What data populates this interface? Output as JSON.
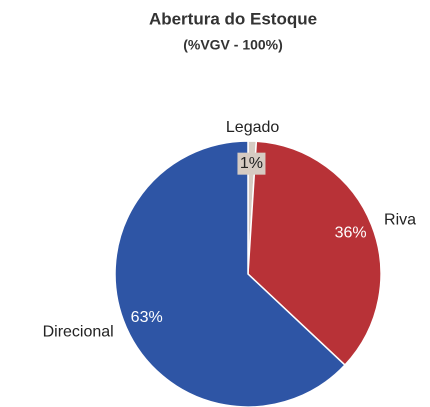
{
  "chart_data": {
    "type": "pie",
    "title": "Abertura do Estoque",
    "subtitle": "(%VGV - 100%)",
    "categories": [
      "Legado",
      "Riva",
      "Direcional"
    ],
    "values": [
      1,
      36,
      63
    ],
    "value_labels": [
      "1%",
      "36%",
      "63%"
    ],
    "colors": [
      "#d6cbc2",
      "#b83237",
      "#2e55a5"
    ]
  }
}
